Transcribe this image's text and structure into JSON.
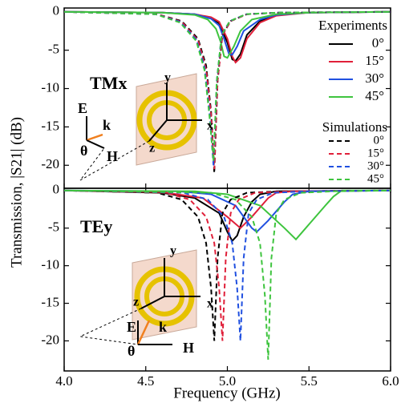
{
  "chart_data": [
    {
      "type": "line",
      "ylabel": "Transmission, |S21| (dB)",
      "panel_label": "TMx",
      "inset_labels": [
        "E",
        "k",
        "H",
        "θ",
        "x",
        "y",
        "z"
      ],
      "xlim": [
        4,
        6
      ],
      "ylim": [
        -23,
        0.5
      ],
      "yticks": [
        0,
        -5,
        -10,
        -15,
        -20
      ],
      "legend_groups": [
        "Experiments",
        "Simulations"
      ],
      "series": [
        {
          "name": "0°",
          "color": "#000000",
          "dash": false,
          "x": [
            4.0,
            4.6,
            4.8,
            4.9,
            4.95,
            5.0,
            5.03,
            5.05,
            5.08,
            5.12,
            5.2,
            5.3,
            5.5,
            6.0
          ],
          "values": [
            0,
            -0.1,
            -0.3,
            -0.8,
            -1.5,
            -4,
            -6.2,
            -6.4,
            -5.5,
            -3,
            -1.2,
            -0.4,
            -0.1,
            0
          ]
        },
        {
          "name": "15°",
          "color": "#e0203a",
          "dash": false,
          "x": [
            4.0,
            4.6,
            4.8,
            4.9,
            4.95,
            5.0,
            5.03,
            5.05,
            5.08,
            5.12,
            5.2,
            5.3,
            5.5,
            6.0
          ],
          "values": [
            0,
            -0.1,
            -0.3,
            -0.7,
            -1.3,
            -3.5,
            -5.8,
            -6.6,
            -6,
            -3.5,
            -1.4,
            -0.5,
            -0.1,
            0
          ]
        },
        {
          "name": "30°",
          "color": "#2050e0",
          "dash": false,
          "x": [
            4.0,
            4.6,
            4.8,
            4.9,
            4.95,
            4.98,
            5.01,
            5.03,
            5.06,
            5.1,
            5.2,
            5.3,
            5.5,
            6.0
          ],
          "values": [
            0,
            -0.1,
            -0.3,
            -0.9,
            -1.8,
            -3.5,
            -5.5,
            -5.6,
            -4.5,
            -2.5,
            -1,
            -0.4,
            -0.1,
            0
          ]
        },
        {
          "name": "45°",
          "color": "#3ec43e",
          "dash": false,
          "x": [
            4.0,
            4.6,
            4.8,
            4.88,
            4.93,
            4.96,
            4.98,
            5.0,
            5.04,
            5.08,
            5.15,
            5.3,
            5.5,
            6.0
          ],
          "values": [
            0,
            -0.1,
            -0.4,
            -1,
            -2.2,
            -4,
            -5.8,
            -6,
            -4.5,
            -2.5,
            -1,
            -0.3,
            -0.1,
            0
          ]
        },
        {
          "name": "0°",
          "color": "#000000",
          "dash": true,
          "x": [
            4.0,
            4.57,
            4.72,
            4.82,
            4.87,
            4.9,
            4.92,
            4.94,
            4.97,
            5.02,
            5.12,
            5.32,
            6.0
          ],
          "values": [
            0,
            -0.3,
            -1.2,
            -3.5,
            -7,
            -13,
            -21,
            -9,
            -3,
            -1.2,
            -0.3,
            -0.1,
            0
          ]
        },
        {
          "name": "15°",
          "color": "#e0203a",
          "dash": true,
          "x": [
            4.0,
            4.57,
            4.72,
            4.82,
            4.87,
            4.9,
            4.92,
            4.94,
            4.97,
            5.02,
            5.12,
            5.32,
            6.0
          ],
          "values": [
            0,
            -0.3,
            -1.3,
            -3.7,
            -7.5,
            -13.5,
            -20.5,
            -9,
            -3,
            -1.2,
            -0.3,
            -0.1,
            0
          ]
        },
        {
          "name": "30°",
          "color": "#2050e0",
          "dash": true,
          "x": [
            4.0,
            4.56,
            4.71,
            4.81,
            4.86,
            4.89,
            4.915,
            4.935,
            4.965,
            5.015,
            5.115,
            5.315,
            6.0
          ],
          "values": [
            0,
            -0.3,
            -1.3,
            -3.6,
            -7.2,
            -13,
            -20,
            -9,
            -3,
            -1.2,
            -0.3,
            -0.1,
            0
          ]
        },
        {
          "name": "45°",
          "color": "#3ec43e",
          "dash": true,
          "x": [
            4.0,
            4.56,
            4.71,
            4.81,
            4.86,
            4.89,
            4.915,
            4.935,
            4.965,
            5.015,
            5.115,
            5.315,
            6.0
          ],
          "values": [
            0,
            -0.3,
            -1.4,
            -3.8,
            -7.6,
            -13.5,
            -19.5,
            -9,
            -3,
            -1.2,
            -0.3,
            -0.1,
            0
          ]
        }
      ]
    },
    {
      "type": "line",
      "xlabel": "Frequency (GHz)",
      "panel_label": "TEy",
      "inset_labels": [
        "E",
        "k",
        "H",
        "θ",
        "x",
        "y",
        "z"
      ],
      "xlim": [
        4,
        6
      ],
      "ylim": [
        -24,
        0.3
      ],
      "yticks": [
        0,
        -5,
        -10,
        -15,
        -20
      ],
      "xticks": [
        {
          "value": 4,
          "label": "4.0"
        },
        4.5,
        {
          "value": 5,
          "label": "5.0"
        },
        5.5,
        {
          "value": 6,
          "label": "6.0"
        }
      ],
      "series": [
        {
          "color": "#000000",
          "dash": false,
          "x": [
            4.0,
            4.6,
            4.8,
            4.95,
            5.0,
            5.03,
            5.06,
            5.1,
            5.15,
            5.2,
            5.3,
            6.0
          ],
          "values": [
            0,
            -0.3,
            -1,
            -3,
            -5.5,
            -6.7,
            -6,
            -3.5,
            -1.5,
            -0.5,
            -0.1,
            0
          ]
        },
        {
          "color": "#e0203a",
          "dash": false,
          "x": [
            4.0,
            4.6,
            4.85,
            5.0,
            5.08,
            5.15,
            5.25,
            5.3,
            5.4,
            6.0
          ],
          "values": [
            0,
            -0.2,
            -1,
            -3.5,
            -5,
            -3.5,
            -1,
            -0.3,
            -0.1,
            0
          ]
        },
        {
          "color": "#2050e0",
          "dash": false,
          "x": [
            4.0,
            4.7,
            4.9,
            5.05,
            5.15,
            5.18,
            5.25,
            5.35,
            5.4,
            5.5,
            6.0
          ],
          "values": [
            0,
            -0.1,
            -0.5,
            -2,
            -5,
            -5.5,
            -4,
            -1.5,
            -0.5,
            -0.1,
            0
          ]
        },
        {
          "color": "#3ec43e",
          "dash": false,
          "x": [
            4.0,
            4.8,
            5.0,
            5.2,
            5.35,
            5.42,
            5.5,
            5.6,
            5.65,
            5.7,
            6.0
          ],
          "values": [
            0,
            -0.1,
            -0.5,
            -2,
            -5,
            -6.5,
            -4.5,
            -2,
            -0.8,
            0,
            0
          ]
        },
        {
          "color": "#000000",
          "dash": true,
          "x": [
            4.0,
            4.57,
            4.72,
            4.82,
            4.87,
            4.9,
            4.92,
            4.94,
            4.97,
            5.02,
            5.12,
            5.32,
            6.0
          ],
          "values": [
            0,
            -0.3,
            -1.2,
            -3.5,
            -7,
            -13,
            -20,
            -9,
            -3,
            -1.2,
            -0.3,
            -0.1,
            0
          ]
        },
        {
          "color": "#e0203a",
          "dash": true,
          "x": [
            4.0,
            4.62,
            4.77,
            4.87,
            4.92,
            4.95,
            4.97,
            4.99,
            5.02,
            5.07,
            5.17,
            5.37,
            6.0
          ],
          "values": [
            0,
            -0.3,
            -1.2,
            -3.5,
            -7,
            -13,
            -20,
            -9,
            -3,
            -1.2,
            -0.3,
            -0.1,
            0
          ]
        },
        {
          "color": "#2050e0",
          "dash": true,
          "x": [
            4.0,
            4.73,
            4.88,
            4.98,
            5.03,
            5.06,
            5.08,
            5.1,
            5.13,
            5.18,
            5.28,
            5.48,
            6.0
          ],
          "values": [
            0,
            -0.3,
            -1.2,
            -3.5,
            -7,
            -13,
            -20,
            -9,
            -3,
            -1.2,
            -0.3,
            -0.1,
            0
          ]
        },
        {
          "color": "#3ec43e",
          "dash": true,
          "x": [
            4.0,
            4.9,
            5.05,
            5.15,
            5.2,
            5.23,
            5.25,
            5.27,
            5.3,
            5.35,
            5.45,
            5.65,
            6.0
          ],
          "values": [
            0,
            -0.3,
            -1.2,
            -3.5,
            -7,
            -14,
            -22.5,
            -9,
            -3,
            -1.2,
            -0.3,
            -0.1,
            0
          ]
        }
      ]
    }
  ]
}
